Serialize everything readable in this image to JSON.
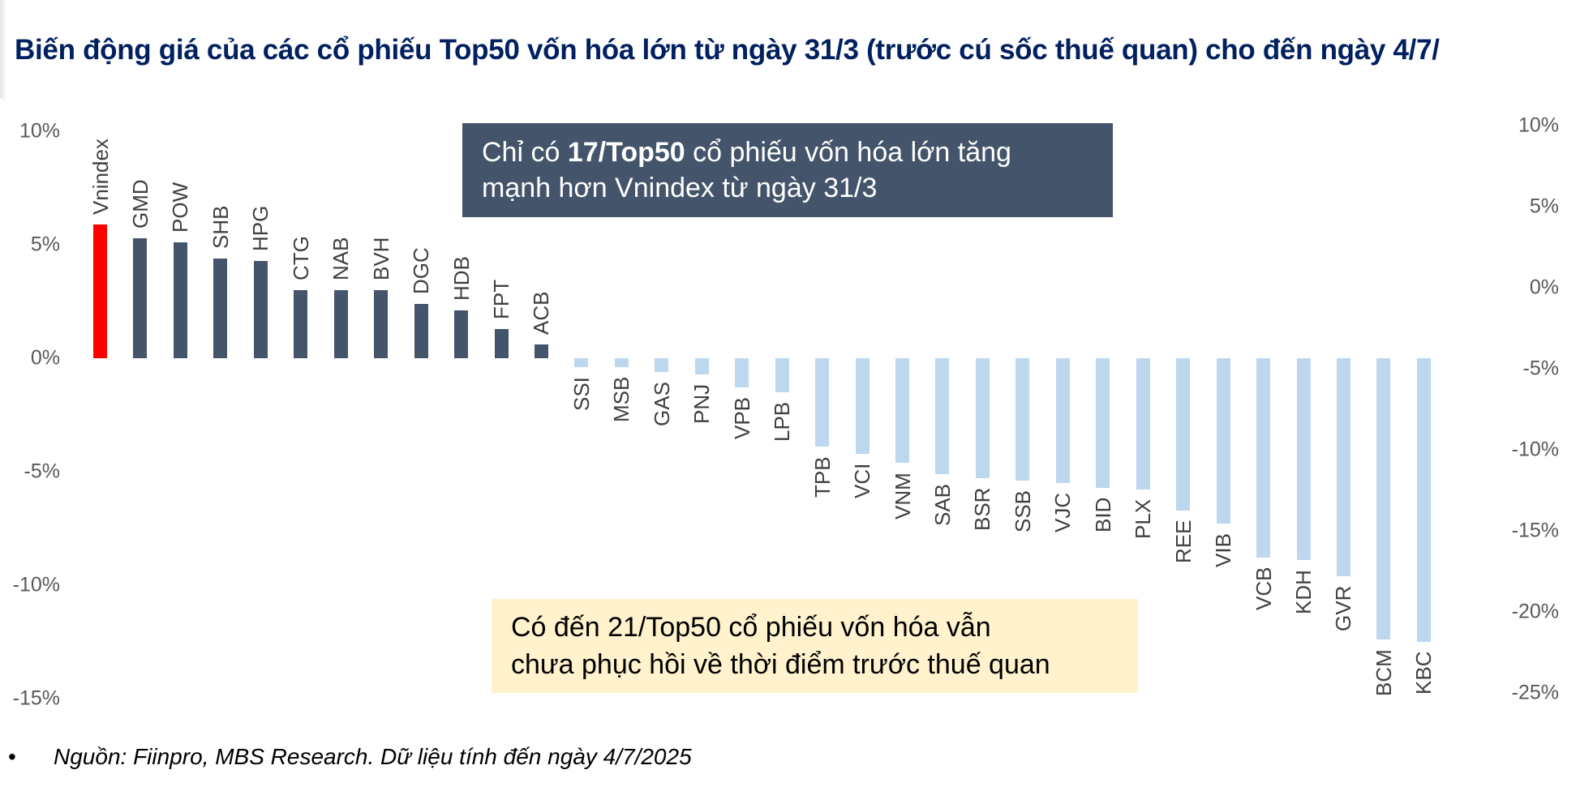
{
  "title": "Biến động giá của các cổ phiếu Top50 vốn hóa lớn từ ngày 31/3 (trước cú sốc thuế quan) cho đến ngày 4/7/",
  "callouts": {
    "top": {
      "pre": "Chỉ có ",
      "bold": "17/Top50",
      "post": " cổ phiếu vốn hóa lớn tăng",
      "line2": "mạnh hơn Vnindex từ ngày 31/3"
    },
    "bottom": {
      "line1": "Có đến 21/Top50 cổ phiếu vốn hóa vẫn",
      "line2": "chưa phục hồi về thời điểm trước thuế quan"
    }
  },
  "footer": {
    "bullet": "•",
    "source": "Nguồn: Fiinpro, MBS Research. Dữ liệu tính đến ngày 4/7/2025"
  },
  "colors": {
    "highlight": "#FF0000",
    "positive": "#44546A",
    "negative": "#BDD7EE",
    "title": "#002060",
    "callout_dark": "#44546A",
    "callout_light": "#FFF2CC"
  },
  "chart_data": {
    "type": "bar",
    "title": "Biến động giá của các cổ phiếu Top50 vốn hóa lớn từ ngày 31/3 (trước cú sốc thuế quan) cho đến ngày 4/7/",
    "xlabel": "",
    "ylabel": "",
    "categories": [
      "Vnindex",
      "GMD",
      "POW",
      "SHB",
      "HPG",
      "CTG",
      "NAB",
      "BVH",
      "DGC",
      "HDB",
      "FPT",
      "ACB",
      "SSI",
      "MSB",
      "GAS",
      "PNJ",
      "VPB",
      "LPB",
      "TPB",
      "VCI",
      "VNM",
      "SAB",
      "BSR",
      "SSB",
      "VJC",
      "BID",
      "PLX",
      "REE",
      "VIB",
      "VCB",
      "KDH",
      "GVR",
      "BCM",
      "KBC"
    ],
    "values": [
      5.9,
      5.3,
      5.1,
      4.4,
      4.3,
      3.0,
      3.0,
      3.0,
      2.4,
      2.1,
      1.3,
      0.6,
      -0.4,
      -0.4,
      -0.6,
      -0.7,
      -1.3,
      -1.5,
      -3.9,
      -4.2,
      -4.6,
      -5.1,
      -5.3,
      -5.4,
      -5.5,
      -5.7,
      -5.8,
      -6.7,
      -7.3,
      -8.8,
      -8.9,
      -9.6,
      -12.4,
      -12.5
    ],
    "ylim": [
      -15,
      10
    ],
    "left_axis_ticks": [
      "10%",
      "5%",
      "0%",
      "-5%",
      "-10%",
      "-15%"
    ],
    "right_axis_ticks": [
      "10%",
      "5%",
      "0%",
      "-5%",
      "-10%",
      "-15%",
      "-20%",
      "-25%"
    ],
    "right_ylim": [
      -25,
      10
    ],
    "grid": false,
    "legend": null,
    "highlight_category": "Vnindex",
    "annotations": [
      "Chỉ có 17/Top50 cổ phiếu vốn hóa lớn tăng mạnh hơn Vnindex từ ngày 31/3",
      "Có đến 21/Top50 cổ phiếu vốn hóa vẫn chưa phục hồi về thời điểm trước thuế quan"
    ]
  }
}
